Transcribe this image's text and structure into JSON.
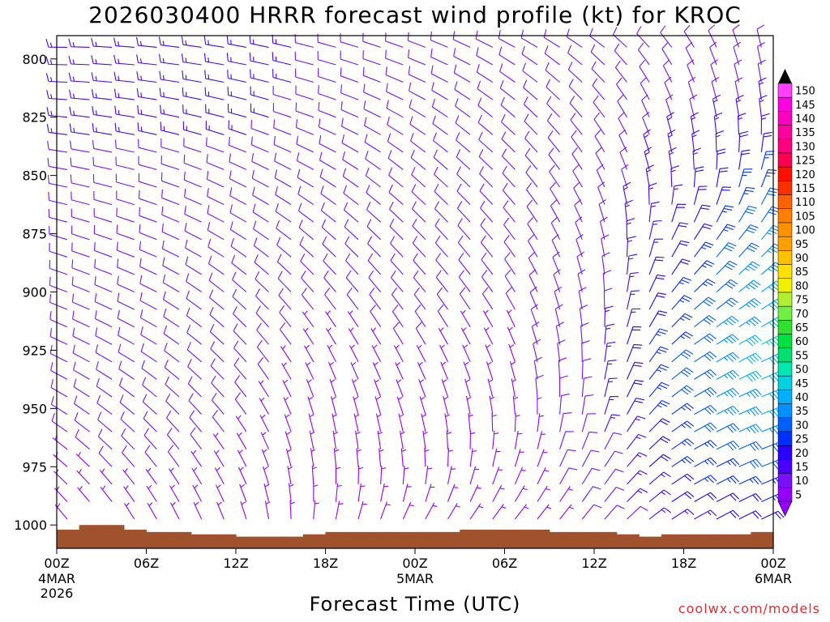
{
  "chart_data": {
    "type": "wind_barb_time_height",
    "title": "2026030400 HRRR forecast wind profile (kt) for KROC",
    "xlabel": "Forecast Time (UTC)",
    "ylabel": "",
    "credit": "coolwx.com/models",
    "x_range_hours": [
      0,
      48
    ],
    "y_range_hpa": [
      790,
      1010
    ],
    "y_ticks": [
      800,
      825,
      850,
      875,
      900,
      925,
      950,
      975,
      1000
    ],
    "x_ticks": [
      {
        "hour": 0,
        "label": "00Z",
        "sub": [
          "4MAR",
          "2026"
        ]
      },
      {
        "hour": 6,
        "label": "06Z",
        "sub": []
      },
      {
        "hour": 12,
        "label": "12Z",
        "sub": []
      },
      {
        "hour": 18,
        "label": "18Z",
        "sub": []
      },
      {
        "hour": 24,
        "label": "00Z",
        "sub": [
          "5MAR"
        ]
      },
      {
        "hour": 30,
        "label": "06Z",
        "sub": []
      },
      {
        "hour": 36,
        "label": "12Z",
        "sub": []
      },
      {
        "hour": 42,
        "label": "18Z",
        "sub": []
      },
      {
        "hour": 48,
        "label": "00Z",
        "sub": [
          "6MAR"
        ]
      }
    ],
    "colorbar": {
      "values": [
        5,
        10,
        15,
        20,
        25,
        30,
        35,
        40,
        45,
        50,
        55,
        60,
        65,
        70,
        75,
        80,
        85,
        90,
        95,
        100,
        105,
        110,
        115,
        120,
        125,
        130,
        135,
        140,
        145,
        150
      ],
      "colors": [
        "#9400ff",
        "#7a10ff",
        "#4b00ff",
        "#2a00ff",
        "#0030ff",
        "#0060ff",
        "#0090ff",
        "#00b0ff",
        "#00d0e0",
        "#00e8b0",
        "#00e070",
        "#00e040",
        "#30e030",
        "#70f040",
        "#b0f030",
        "#f0f000",
        "#ffe000",
        "#ffc000",
        "#ffa000",
        "#ff9000",
        "#ff8000",
        "#ff6000",
        "#ff3000",
        "#ff1000",
        "#ff0050",
        "#ff0080",
        "#ff00a0",
        "#ff00c0",
        "#ff00e0",
        "#ff40ff"
      ],
      "top_arrow_color": "#000000",
      "bottom_arrow_color": "#9400ff"
    },
    "terrain_color": "#a0522d",
    "terrain_top_hpa": [
      1002,
      1000,
      1000,
      1002,
      1003,
      1003,
      1004,
      1004,
      1005,
      1005,
      1005,
      1004,
      1003,
      1003,
      1003,
      1003,
      1003,
      1003,
      1002,
      1002,
      1002,
      1002,
      1003,
      1003,
      1003,
      1004,
      1005,
      1004,
      1004,
      1004,
      1004,
      1003
    ],
    "anchors": {
      "levels_hpa": [
        790,
        800,
        825,
        850,
        875,
        900,
        925,
        950,
        975,
        1000
      ],
      "hours": [
        0,
        6,
        12,
        18,
        24,
        30,
        36,
        42,
        48
      ],
      "dir_deg": [
        [
          270,
          275,
          280,
          285,
          290,
          295,
          300,
          320,
          350
        ],
        [
          270,
          275,
          280,
          285,
          290,
          300,
          310,
          330,
          350
        ],
        [
          275,
          280,
          285,
          290,
          300,
          310,
          320,
          345,
          355
        ],
        [
          280,
          285,
          295,
          300,
          310,
          315,
          330,
          355,
          20
        ],
        [
          285,
          290,
          300,
          310,
          315,
          320,
          340,
          30,
          40
        ],
        [
          290,
          295,
          310,
          320,
          320,
          325,
          350,
          45,
          55
        ],
        [
          295,
          300,
          315,
          330,
          330,
          335,
          360,
          55,
          65
        ],
        [
          300,
          310,
          320,
          345,
          340,
          350,
          10,
          60,
          70
        ],
        [
          310,
          320,
          330,
          355,
          355,
          15,
          30,
          60,
          70
        ],
        [
          320,
          330,
          340,
          10,
          30,
          40,
          40,
          60,
          65
        ]
      ],
      "speed_kt": [
        [
          15,
          15,
          14,
          12,
          13,
          12,
          10,
          10,
          8
        ],
        [
          14,
          14,
          14,
          12,
          12,
          12,
          10,
          8,
          8
        ],
        [
          13,
          13,
          13,
          12,
          12,
          11,
          10,
          12,
          15
        ],
        [
          12,
          12,
          12,
          11,
          11,
          11,
          10,
          16,
          25
        ],
        [
          11,
          12,
          12,
          10,
          10,
          10,
          10,
          20,
          35
        ],
        [
          10,
          11,
          11,
          8,
          9,
          8,
          10,
          25,
          40
        ],
        [
          9,
          10,
          10,
          6,
          8,
          6,
          12,
          30,
          45
        ],
        [
          8,
          9,
          8,
          5,
          6,
          5,
          12,
          30,
          40
        ],
        [
          7,
          8,
          7,
          5,
          5,
          5,
          10,
          25,
          30
        ],
        [
          5,
          6,
          5,
          4,
          4,
          4,
          8,
          15,
          20
        ]
      ]
    }
  }
}
